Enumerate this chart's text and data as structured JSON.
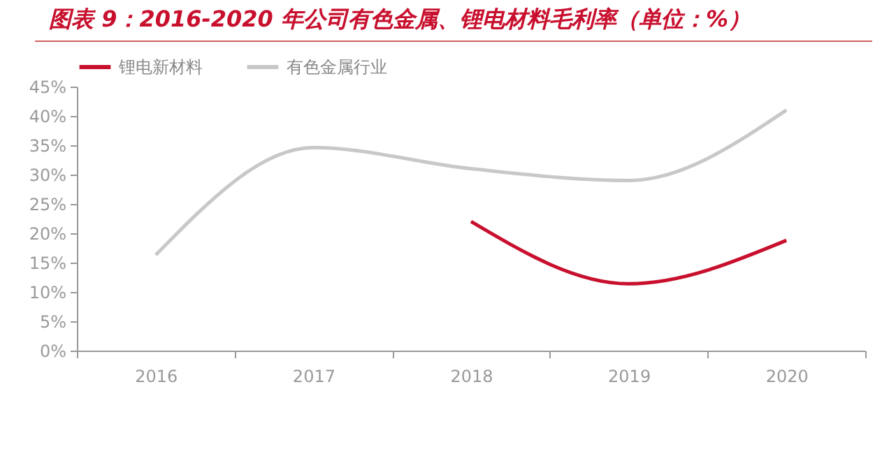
{
  "chart_data": {
    "type": "line",
    "title": "图表 9：2016-2020 年公司有色金属、锂电材料毛利率（单位：%）",
    "categories": [
      "2016",
      "2017",
      "2018",
      "2019",
      "2020"
    ],
    "series": [
      {
        "name": "锂电新材料",
        "color": "#c8102e",
        "values": [
          null,
          null,
          22,
          11.4,
          18.8
        ]
      },
      {
        "name": "有色金属行业",
        "color": "#c8c8c8",
        "values": [
          16.3,
          34.6,
          31,
          29,
          41
        ]
      }
    ],
    "ylim": [
      0,
      45
    ],
    "yticks": [
      {
        "value": 0,
        "label": "0%"
      },
      {
        "value": 5,
        "label": "5%"
      },
      {
        "value": 10,
        "label": "10%"
      },
      {
        "value": 15,
        "label": "15%"
      },
      {
        "value": 20,
        "label": "20%"
      },
      {
        "value": 25,
        "label": "25%"
      },
      {
        "value": 30,
        "label": "30%"
      },
      {
        "value": 35,
        "label": "35%"
      },
      {
        "value": 40,
        "label": "40%"
      },
      {
        "value": 45,
        "label": "45%"
      }
    ],
    "grid": false,
    "legend": "top",
    "marker": "none",
    "line_style": "solid"
  }
}
